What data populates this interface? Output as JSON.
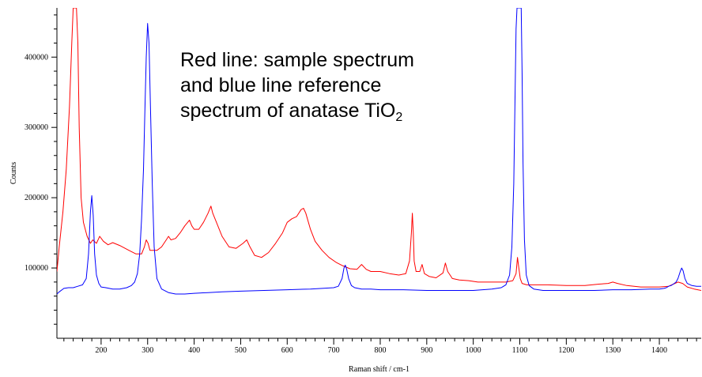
{
  "chart_data": {
    "type": "line",
    "title": "",
    "xlabel": "Raman shift / cm-1",
    "ylabel": "Counts",
    "xlim": [
      105,
      1490
    ],
    "ylim": [
      0,
      470000
    ],
    "x_ticks": [
      200,
      300,
      400,
      500,
      600,
      700,
      800,
      900,
      1000,
      1100,
      1200,
      1300,
      1400
    ],
    "y_ticks": [
      100000,
      200000,
      300000,
      400000
    ],
    "grid": false,
    "annotation": {
      "line1": "Red line: sample spectrum",
      "line2": "and blue line reference",
      "line3": "spectrum of anatase TiO",
      "subscript": "2"
    },
    "series": [
      {
        "color": "#ff0000",
        "x": [
          105,
          110,
          118,
          125,
          132,
          137,
          140,
          143,
          145,
          147,
          150,
          153,
          157,
          162,
          170,
          177,
          182,
          190,
          197,
          205,
          215,
          225,
          240,
          260,
          275,
          287,
          293,
          297,
          301,
          305,
          310,
          320,
          330,
          340,
          345,
          350,
          360,
          370,
          380,
          390,
          395,
          400,
          410,
          420,
          430,
          436,
          440,
          448,
          460,
          475,
          490,
          505,
          513,
          520,
          530,
          545,
          560,
          575,
          590,
          600,
          610,
          620,
          630,
          635,
          640,
          650,
          660,
          675,
          690,
          705,
          720,
          735,
          750,
          760,
          770,
          780,
          800,
          820,
          840,
          855,
          863,
          867,
          869,
          871,
          873,
          877,
          885,
          890,
          895,
          905,
          920,
          935,
          940,
          945,
          955,
          970,
          990,
          1010,
          1040,
          1070,
          1085,
          1092,
          1095,
          1098,
          1101,
          1105,
          1115,
          1130,
          1160,
          1200,
          1240,
          1270,
          1290,
          1300,
          1310,
          1330,
          1360,
          1400,
          1420,
          1430,
          1440,
          1450,
          1460,
          1475,
          1490
        ],
        "y": [
          95000,
          130000,
          180000,
          240000,
          330000,
          420000,
          470000,
          470000,
          470000,
          470000,
          420000,
          300000,
          200000,
          165000,
          145000,
          135000,
          140000,
          135000,
          145000,
          138000,
          133000,
          136000,
          132000,
          125000,
          120000,
          120000,
          130000,
          140000,
          135000,
          125000,
          125000,
          125000,
          130000,
          140000,
          145000,
          140000,
          142000,
          150000,
          160000,
          168000,
          160000,
          155000,
          155000,
          165000,
          178000,
          188000,
          178000,
          165000,
          145000,
          130000,
          128000,
          135000,
          140000,
          130000,
          118000,
          115000,
          122000,
          135000,
          150000,
          165000,
          170000,
          173000,
          183000,
          185000,
          178000,
          155000,
          138000,
          125000,
          115000,
          108000,
          103000,
          99000,
          98000,
          105000,
          98000,
          95000,
          95000,
          92000,
          90000,
          92000,
          110000,
          150000,
          178000,
          150000,
          110000,
          95000,
          95000,
          105000,
          92000,
          88000,
          86000,
          93000,
          107000,
          95000,
          85000,
          83000,
          82000,
          80000,
          80000,
          80000,
          82000,
          92000,
          115000,
          100000,
          85000,
          78000,
          76000,
          76000,
          76000,
          75000,
          75000,
          77000,
          78000,
          80000,
          78000,
          75000,
          73000,
          73000,
          74000,
          77000,
          80000,
          78000,
          73000,
          70000,
          68000
        ]
      },
      {
        "color": "#0000ff",
        "x": [
          105,
          110,
          120,
          130,
          140,
          150,
          160,
          168,
          173,
          177,
          180,
          183,
          186,
          190,
          195,
          200,
          210,
          225,
          240,
          255,
          265,
          272,
          278,
          283,
          287,
          291,
          294,
          297,
          300,
          303,
          306,
          310,
          314,
          320,
          330,
          345,
          360,
          380,
          400,
          430,
          460,
          500,
          550,
          600,
          650,
          700,
          710,
          718,
          722,
          725,
          728,
          732,
          738,
          745,
          760,
          780,
          800,
          850,
          900,
          950,
          1000,
          1040,
          1060,
          1070,
          1078,
          1083,
          1087,
          1090,
          1092,
          1094,
          1103,
          1105,
          1107,
          1110,
          1114,
          1120,
          1130,
          1150,
          1180,
          1220,
          1260,
          1300,
          1340,
          1380,
          1400,
          1410,
          1415,
          1420,
          1425,
          1430,
          1436,
          1440,
          1445,
          1448,
          1451,
          1455,
          1460,
          1470,
          1480,
          1490
        ],
        "y": [
          63000,
          66000,
          71000,
          72000,
          72000,
          74000,
          76000,
          85000,
          120000,
          180000,
          203000,
          175000,
          120000,
          90000,
          78000,
          73000,
          72000,
          70000,
          70000,
          72000,
          75000,
          80000,
          92000,
          120000,
          170000,
          240000,
          320000,
          400000,
          448000,
          420000,
          330000,
          220000,
          130000,
          85000,
          70000,
          65000,
          63000,
          63000,
          64000,
          65000,
          66000,
          67000,
          68000,
          69000,
          70000,
          72000,
          74000,
          85000,
          100000,
          104000,
          98000,
          85000,
          75000,
          72000,
          70000,
          70000,
          69000,
          69000,
          68000,
          68000,
          68000,
          70000,
          72000,
          76000,
          90000,
          130000,
          220000,
          350000,
          440000,
          470000,
          470000,
          380000,
          250000,
          140000,
          90000,
          75000,
          70000,
          68000,
          68000,
          68000,
          68000,
          69000,
          69000,
          70000,
          70000,
          71000,
          72000,
          74000,
          75000,
          77000,
          80000,
          85000,
          95000,
          100000,
          96000,
          85000,
          78000,
          75000,
          74000,
          74000
        ]
      }
    ]
  }
}
